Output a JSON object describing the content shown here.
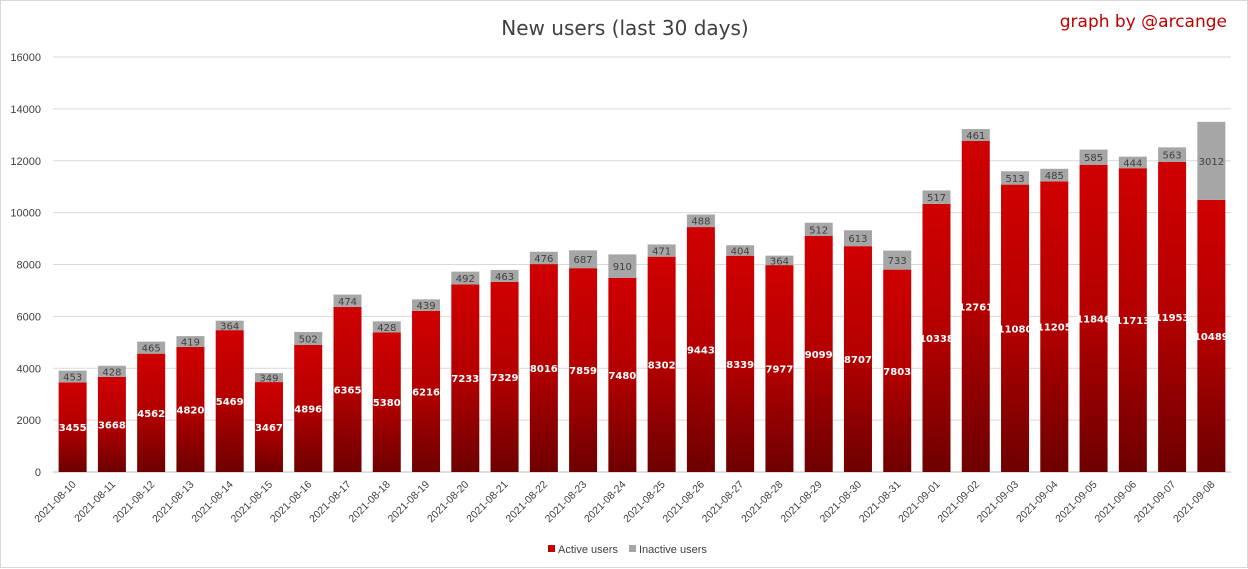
{
  "chart_data": {
    "type": "bar",
    "stacked": true,
    "title": "New users (last 30 days)",
    "credit": "graph by @arcange",
    "xlabel": "",
    "ylabel": "",
    "ylim": [
      0,
      16000
    ],
    "yticks": [
      0,
      2000,
      4000,
      6000,
      8000,
      10000,
      12000,
      14000,
      16000
    ],
    "grid": true,
    "legend_position": "bottom",
    "categories": [
      "2021-08-10",
      "2021-08-11",
      "2021-08-12",
      "2021-08-13",
      "2021-08-14",
      "2021-08-15",
      "2021-08-16",
      "2021-08-17",
      "2021-08-18",
      "2021-08-19",
      "2021-08-20",
      "2021-08-21",
      "2021-08-22",
      "2021-08-23",
      "2021-08-24",
      "2021-08-25",
      "2021-08-26",
      "2021-08-27",
      "2021-08-28",
      "2021-08-29",
      "2021-08-30",
      "2021-08-31",
      "2021-09-01",
      "2021-09-02",
      "2021-09-03",
      "2021-09-04",
      "2021-09-05",
      "2021-09-06",
      "2021-09-07",
      "2021-09-08"
    ],
    "series": [
      {
        "name": "Active users",
        "color": "#c00000",
        "color_dark": "#7a0000",
        "values": [
          3455,
          3668,
          4562,
          4820,
          5469,
          3467,
          4896,
          6365,
          5380,
          6216,
          7233,
          7329,
          8016,
          7859,
          7480,
          8302,
          9443,
          8339,
          7977,
          9099,
          8707,
          7803,
          10338,
          12761,
          11080,
          11205,
          11846,
          11713,
          11953,
          10489
        ]
      },
      {
        "name": "Inactive users",
        "color": "#a6a6a6",
        "values": [
          453,
          428,
          465,
          419,
          364,
          349,
          502,
          474,
          428,
          439,
          492,
          463,
          476,
          687,
          910,
          471,
          488,
          404,
          364,
          512,
          613,
          733,
          517,
          461,
          513,
          485,
          585,
          444,
          563,
          3012
        ]
      }
    ]
  }
}
